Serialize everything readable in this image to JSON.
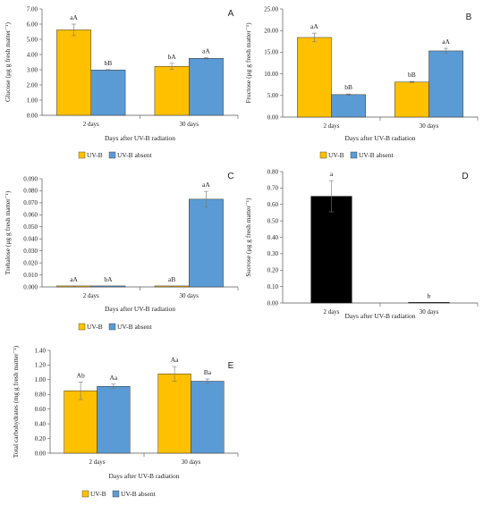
{
  "panels": [
    {
      "panel": "A",
      "ylabel": "Glucose (μg g fresh matter⁻¹)",
      "xlabel": "Days after UV-B radiation",
      "ylim": [
        0,
        7
      ],
      "yticks": [
        "0.00",
        "1.00",
        "2.00",
        "3.00",
        "4.00",
        "5.00",
        "6.00",
        "7.00"
      ],
      "categories": [
        "2 days",
        "30 days"
      ],
      "series": [
        {
          "name": "UV-B",
          "color": "#FFC000",
          "values": [
            5.62,
            3.22
          ],
          "errors": [
            0.38,
            0.2
          ],
          "labels": [
            "aA",
            "bA"
          ]
        },
        {
          "name": "UV-B absent",
          "color": "#5B9BD5",
          "values": [
            2.98,
            3.75
          ],
          "errors": [
            0.03,
            0.05
          ],
          "labels": [
            "bB",
            "aA"
          ]
        }
      ],
      "legend": [
        "UV-B",
        "UV-B absent"
      ]
    },
    {
      "panel": "B",
      "ylabel": "Fructose (μg g fresh matter⁻¹)",
      "xlabel": "Days after UV-B radiation",
      "ylim": [
        0,
        25
      ],
      "yticks": [
        "0.00",
        "5.00",
        "10.00",
        "15.00",
        "20.00",
        "25.00"
      ],
      "categories": [
        "2 days",
        "30 days"
      ],
      "series": [
        {
          "name": "UV-B",
          "color": "#FFC000",
          "values": [
            18.4,
            8.1
          ],
          "errors": [
            1.0,
            0.15
          ],
          "labels": [
            "aA",
            "bB"
          ]
        },
        {
          "name": "UV-B absent",
          "color": "#5B9BD5",
          "values": [
            5.2,
            15.3
          ],
          "errors": [
            0.15,
            0.6
          ],
          "labels": [
            "bB",
            "aA"
          ]
        }
      ],
      "legend": [
        "UV-B",
        "UV-B absent"
      ]
    },
    {
      "panel": "C",
      "ylabel": "Trehalose (μg g fresh matter⁻¹)",
      "xlabel": "Days after UV-B radiation",
      "ylim": [
        0,
        0.09
      ],
      "yticks": [
        "0.000",
        "0.010",
        "0.020",
        "0.030",
        "0.040",
        "0.050",
        "0.060",
        "0.070",
        "0.080",
        "0.090"
      ],
      "categories": [
        "2 days",
        "30 days"
      ],
      "series": [
        {
          "name": "UV-B",
          "color": "#FFC000",
          "values": [
            0.0008,
            0.0008
          ],
          "errors": [
            0.0001,
            0.0001
          ],
          "labels": [
            "aA",
            "aB"
          ]
        },
        {
          "name": "UV-B absent",
          "color": "#5B9BD5",
          "values": [
            0.0008,
            0.073
          ],
          "errors": [
            0.0001,
            0.0065
          ],
          "labels": [
            "bA",
            "aA"
          ]
        }
      ],
      "legend": [
        "UV-B",
        "UV-B absent"
      ]
    },
    {
      "panel": "D",
      "ylabel": "Sucrose (μg g fresh matter⁻¹)",
      "xlabel": "Days after UV-B radiation",
      "ylim": [
        0,
        0.8
      ],
      "yticks": [
        "0.00",
        "0.10",
        "0.20",
        "0.30",
        "0.40",
        "0.50",
        "0.60",
        "0.70",
        "0.80"
      ],
      "categories": [
        "2 days",
        "30 days"
      ],
      "series": [
        {
          "name": "",
          "color": "#000000",
          "values": [
            0.65,
            0.004
          ],
          "errors": [
            0.095,
            0.0
          ],
          "labels": [
            "a",
            "b"
          ]
        }
      ],
      "legend": []
    },
    {
      "panel": "E",
      "ylabel": "Total carbohydrates (mg g fresh matter⁻¹)",
      "xlabel": "Days after UV-B radiation",
      "ylim": [
        0,
        1.4
      ],
      "yticks": [
        "0.00",
        "0.20",
        "0.40",
        "0.60",
        "0.80",
        "1.00",
        "1.20",
        "1.40"
      ],
      "categories": [
        "2 days",
        "30 days"
      ],
      "series": [
        {
          "name": "UV-B",
          "color": "#FFC000",
          "values": [
            0.85,
            1.08
          ],
          "errors": [
            0.12,
            0.1
          ],
          "labels": [
            "Ab",
            "Aa"
          ]
        },
        {
          "name": "UV-B absent",
          "color": "#5B9BD5",
          "values": [
            0.91,
            0.98
          ],
          "errors": [
            0.03,
            0.03
          ],
          "labels": [
            "Aa",
            "Ba"
          ]
        }
      ],
      "legend": [
        "UV-B",
        "UV-B absent"
      ]
    }
  ],
  "chart_data": [
    {
      "type": "bar",
      "panel": "A",
      "categories": [
        "2 days",
        "30 days"
      ],
      "series": [
        {
          "name": "UV-B",
          "values": [
            5.62,
            3.22
          ]
        },
        {
          "name": "UV-B absent",
          "values": [
            2.98,
            3.75
          ]
        }
      ],
      "ylim": [
        0,
        7
      ]
    },
    {
      "type": "bar",
      "panel": "B",
      "categories": [
        "2 days",
        "30 days"
      ],
      "series": [
        {
          "name": "UV-B",
          "values": [
            18.4,
            8.1
          ]
        },
        {
          "name": "UV-B absent",
          "values": [
            5.2,
            15.3
          ]
        }
      ],
      "ylim": [
        0,
        25
      ]
    },
    {
      "type": "bar",
      "panel": "C",
      "categories": [
        "2 days",
        "30 days"
      ],
      "series": [
        {
          "name": "UV-B",
          "values": [
            0.0008,
            0.0008
          ]
        },
        {
          "name": "UV-B absent",
          "values": [
            0.0008,
            0.073
          ]
        }
      ],
      "ylim": [
        0,
        0.09
      ]
    },
    {
      "type": "bar",
      "panel": "D",
      "categories": [
        "2 days",
        "30 days"
      ],
      "series": [
        {
          "values": [
            0.65,
            0.004
          ]
        }
      ],
      "ylim": [
        0,
        0.8
      ]
    },
    {
      "type": "bar",
      "panel": "E",
      "categories": [
        "2 days",
        "30 days"
      ],
      "series": [
        {
          "name": "UV-B",
          "values": [
            0.85,
            1.08
          ]
        },
        {
          "name": "UV-B absent",
          "values": [
            0.91,
            0.98
          ]
        }
      ],
      "ylim": [
        0,
        1.4
      ]
    }
  ]
}
